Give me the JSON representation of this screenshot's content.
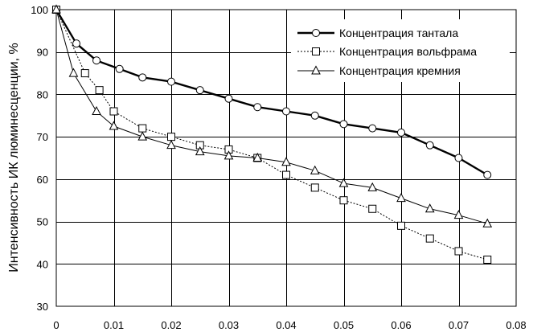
{
  "chart_data": {
    "type": "line",
    "title": "",
    "xlabel": "",
    "ylabel": "Интенсивность ИК люминесценции, %",
    "xlim": [
      0,
      0.08
    ],
    "ylim": [
      30,
      100
    ],
    "x_ticks": [
      0,
      0.01,
      0.02,
      0.03,
      0.04,
      0.05,
      0.06,
      0.07,
      0.08
    ],
    "x_tick_labels": [
      "0",
      "0.01",
      "0.02",
      "0.03",
      "0.04",
      "0.05",
      "0.06",
      "0.07",
      "0.08"
    ],
    "y_ticks": [
      30,
      40,
      50,
      60,
      70,
      80,
      90,
      100
    ],
    "y_tick_labels": [
      "30",
      "40",
      "50",
      "60",
      "70",
      "80",
      "90",
      "100"
    ],
    "grid": true,
    "legend_position": "top-right",
    "series": [
      {
        "name": "Концентрация тантала",
        "marker": "circle",
        "line_style": "solid-thick",
        "x": [
          0,
          0.0035,
          0.007,
          0.011,
          0.015,
          0.02,
          0.025,
          0.03,
          0.035,
          0.04,
          0.045,
          0.05,
          0.055,
          0.06,
          0.065,
          0.07,
          0.075
        ],
        "y": [
          100,
          92,
          88,
          86,
          84,
          83,
          81,
          79,
          77,
          76,
          75,
          73,
          72,
          71,
          68,
          65,
          61
        ]
      },
      {
        "name": "Концентрация вольфрама",
        "marker": "square",
        "line_style": "dotted",
        "x": [
          0,
          0.005,
          0.0075,
          0.01,
          0.015,
          0.02,
          0.025,
          0.03,
          0.035,
          0.04,
          0.045,
          0.05,
          0.055,
          0.06,
          0.065,
          0.07,
          0.075
        ],
        "y": [
          100,
          85,
          81,
          76,
          72,
          70,
          68,
          67,
          65,
          61,
          58,
          55,
          53,
          49,
          46,
          43,
          41
        ]
      },
      {
        "name": "Концентрация кремния",
        "marker": "triangle",
        "line_style": "solid-thin",
        "x": [
          0,
          0.003,
          0.007,
          0.01,
          0.015,
          0.02,
          0.025,
          0.03,
          0.035,
          0.04,
          0.045,
          0.05,
          0.055,
          0.06,
          0.065,
          0.07,
          0.075
        ],
        "y": [
          100,
          85,
          76,
          72.5,
          70,
          68,
          66.5,
          65.5,
          65,
          64,
          62,
          59,
          58,
          55.5,
          53,
          51.5,
          49.5
        ]
      }
    ]
  }
}
